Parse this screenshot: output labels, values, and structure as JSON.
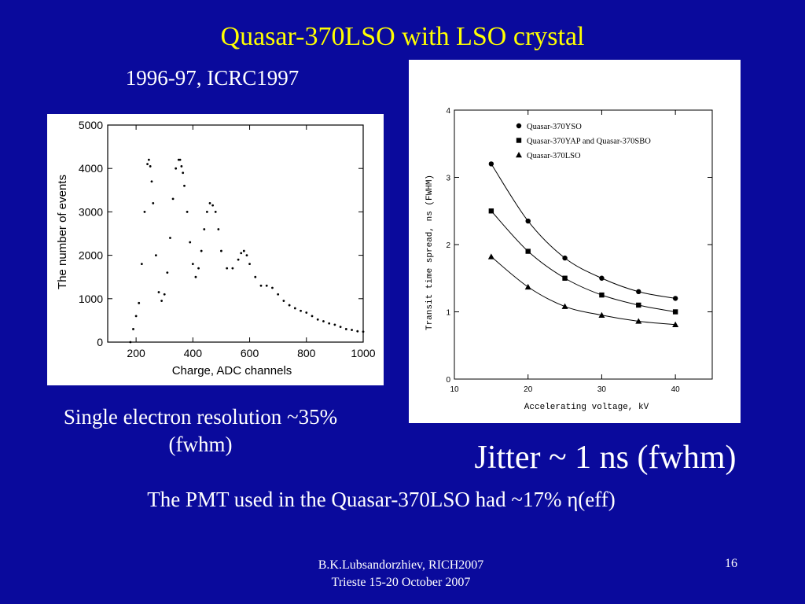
{
  "slide": {
    "title": "Quasar-370LSO with LSO crystal",
    "left_caption_top": "1996-97, ICRC1997",
    "left_caption_bottom_line1": "Single electron resolution  ~35%",
    "left_caption_bottom_line2": "(fwhm)",
    "jitter": "Jitter ~ 1 ns (fwhm)",
    "pmt_note": "The PMT used in the Quasar-370LSO had  ~17% η(eff)",
    "footer_line1": "B.K.Lubsandorzhiev, RICH2007",
    "footer_line2": "Trieste 15-20 October 2007",
    "page_number": "16"
  },
  "chart_data": [
    {
      "type": "scatter",
      "xlabel": "Charge, ADC channels",
      "ylabel": "The number of events",
      "xlim": [
        100,
        1000
      ],
      "ylim": [
        0,
        5000
      ],
      "xticks": [
        200,
        400,
        600,
        800,
        1000
      ],
      "yticks": [
        0,
        1000,
        2000,
        3000,
        4000,
        5000
      ],
      "grid": false,
      "series": [
        {
          "x": [
            180,
            190,
            200,
            210,
            220,
            230,
            240,
            245,
            250,
            255,
            260,
            270,
            280,
            290,
            300,
            310,
            320,
            330,
            340,
            350,
            355,
            360,
            365,
            370,
            380,
            390,
            400,
            410,
            420,
            430,
            440,
            450,
            460,
            470,
            480,
            490,
            500,
            520,
            540,
            560,
            570,
            580,
            590,
            600,
            620,
            640,
            660,
            680,
            700,
            720,
            740,
            760,
            780,
            800,
            820,
            840,
            860,
            880,
            900,
            920,
            940,
            960,
            980,
            1000
          ],
          "y": [
            0,
            300,
            600,
            900,
            1800,
            3000,
            4100,
            4200,
            4050,
            3700,
            3200,
            2000,
            1150,
            950,
            1100,
            1600,
            2400,
            3300,
            4000,
            4200,
            4200,
            4050,
            3900,
            3600,
            3000,
            2300,
            1800,
            1500,
            1700,
            2100,
            2600,
            3000,
            3200,
            3150,
            3000,
            2600,
            2100,
            1700,
            1700,
            1900,
            2050,
            2100,
            2000,
            1800,
            1500,
            1300,
            1300,
            1250,
            1100,
            950,
            850,
            780,
            720,
            680,
            600,
            520,
            480,
            430,
            400,
            350,
            300,
            280,
            250,
            240
          ]
        }
      ]
    },
    {
      "type": "scatter",
      "xlabel": "Accelerating voltage, kV",
      "ylabel": "Transit time spread, ns (FWHM)",
      "xlim": [
        10,
        45
      ],
      "ylim": [
        0,
        4
      ],
      "xticks": [
        10,
        20,
        30,
        40
      ],
      "yticks": [
        0,
        1,
        2,
        3,
        4
      ],
      "grid": false,
      "legend": "top-left",
      "series": [
        {
          "name": "Quasar-370YSO",
          "marker": "circle",
          "x": [
            15,
            20,
            25,
            30,
            35,
            40
          ],
          "y": [
            3.2,
            2.35,
            1.8,
            1.5,
            1.3,
            1.2
          ]
        },
        {
          "name": "Quasar-370YAP and Quasar-370SBO",
          "marker": "square",
          "x": [
            15,
            20,
            25,
            30,
            35,
            40
          ],
          "y": [
            2.5,
            1.9,
            1.5,
            1.25,
            1.1,
            1.0
          ]
        },
        {
          "name": "Quasar-370LSO",
          "marker": "triangle",
          "x": [
            15,
            20,
            25,
            30,
            35,
            40
          ],
          "y": [
            1.82,
            1.37,
            1.08,
            0.95,
            0.86,
            0.81
          ]
        }
      ]
    }
  ]
}
